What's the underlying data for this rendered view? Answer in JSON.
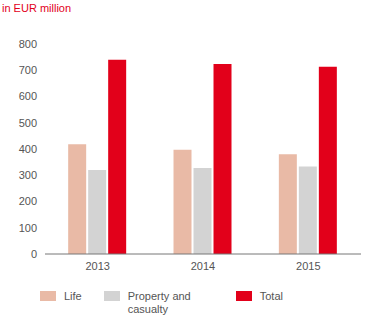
{
  "chart_data": {
    "type": "bar",
    "title": "in EUR million",
    "categories": [
      "2013",
      "2014",
      "2015"
    ],
    "series": [
      {
        "name": "Life",
        "color": "#e9baa6",
        "values": [
          418,
          397,
          380
        ]
      },
      {
        "name": "Property and casualty",
        "color": "#d3d3d3",
        "values": [
          320,
          328,
          333
        ]
      },
      {
        "name": "Total",
        "color": "#e2001a",
        "values": [
          740,
          724,
          713
        ]
      }
    ],
    "ylim": [
      0,
      800
    ],
    "yticks": [
      0,
      100,
      200,
      300,
      400,
      500,
      600,
      700,
      800
    ],
    "grid": false,
    "legend": "bottom"
  }
}
